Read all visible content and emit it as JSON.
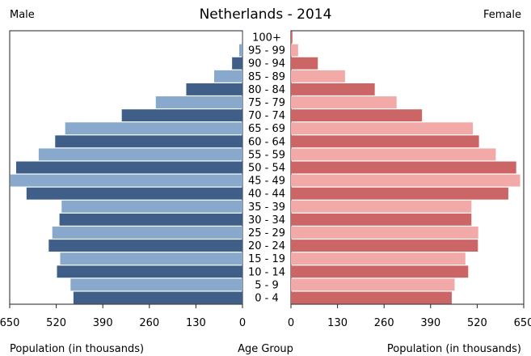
{
  "chart_data": {
    "type": "bar",
    "title": "Netherlands - 2014",
    "left_label": "Male",
    "right_label": "Female",
    "xlabel_left": "Population (in thousands)",
    "xlabel_center": "Age Group",
    "xlabel_right": "Population (in thousands)",
    "categories": [
      "100+",
      "95 - 99",
      "90 - 94",
      "85 - 89",
      "80 - 84",
      "75 - 79",
      "70 - 74",
      "65 - 69",
      "60 - 64",
      "55 - 59",
      "50 - 54",
      "45 - 49",
      "40 - 44",
      "35 - 39",
      "30 - 34",
      "25 - 29",
      "20 - 24",
      "15 - 19",
      "10 - 14",
      "5 - 9",
      "0 - 4"
    ],
    "series": [
      {
        "name": "Male",
        "values": [
          1,
          9,
          29,
          79,
          157,
          242,
          337,
          495,
          523,
          569,
          632,
          648,
          603,
          505,
          511,
          531,
          541,
          509,
          518,
          480,
          472
        ]
      },
      {
        "name": "Female",
        "values": [
          4,
          20,
          75,
          151,
          234,
          295,
          366,
          508,
          525,
          572,
          629,
          640,
          607,
          504,
          504,
          523,
          522,
          487,
          495,
          457,
          449
        ]
      }
    ],
    "xlim": [
      0,
      650
    ],
    "ticks": [
      650,
      520,
      390,
      260,
      130,
      0
    ],
    "colors": {
      "male_dark": "#3f5f88",
      "male_light": "#88a8cc",
      "female_dark": "#cc6666",
      "female_light": "#f2aaa8"
    }
  }
}
